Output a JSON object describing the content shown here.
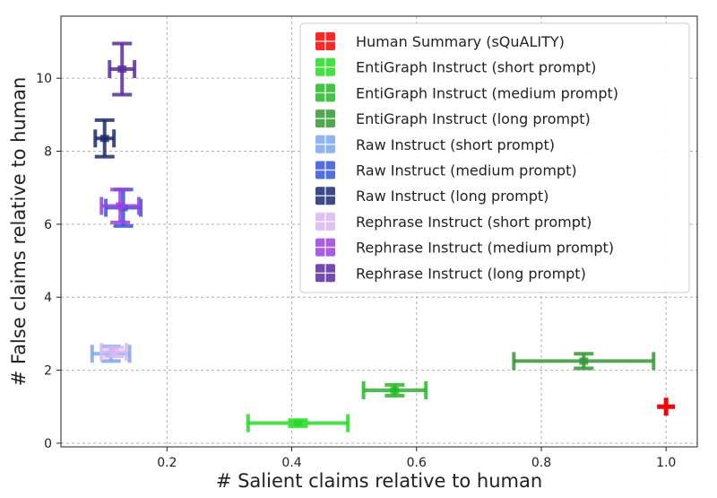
{
  "chart_data": {
    "type": "scatter",
    "title": "",
    "xlabel": "# Salient claims relative to human",
    "ylabel": "# False claims relative to human",
    "xlim": [
      0.03,
      1.05
    ],
    "ylim": [
      -0.1,
      11.7
    ],
    "xticks": [
      0.2,
      0.4,
      0.6,
      0.8,
      1.0
    ],
    "xtick_labels": [
      "0.2",
      "0.4",
      "0.6",
      "0.8",
      "1.0"
    ],
    "yticks": [
      0,
      2,
      4,
      6,
      8,
      10
    ],
    "ytick_labels": [
      "0",
      "2",
      "4",
      "6",
      "8",
      "10"
    ],
    "grid": true,
    "legend_position": "upper-right",
    "series": [
      {
        "name": "Human Summary (sQuALITY)",
        "color": "#ff0000",
        "x": 1.0,
        "y": 1.0,
        "xerr": 0.0,
        "yerr": 0.0
      },
      {
        "name": "EntiGraph Instruct (short prompt)",
        "color": "#22dd22",
        "x": 0.41,
        "y": 0.55,
        "xerr": 0.08,
        "yerr": 0.08
      },
      {
        "name": "EntiGraph Instruct (medium prompt)",
        "color": "#22bb22",
        "x": 0.565,
        "y": 1.45,
        "xerr": 0.05,
        "yerr": 0.15
      },
      {
        "name": "EntiGraph Instruct (long prompt)",
        "color": "#339933",
        "x": 0.868,
        "y": 2.25,
        "xerr": 0.112,
        "yerr": 0.2
      },
      {
        "name": "Raw Instruct (short prompt)",
        "color": "#7aa8f0",
        "x": 0.11,
        "y": 2.45,
        "xerr": 0.03,
        "yerr": 0.2
      },
      {
        "name": "Raw Instruct (medium prompt)",
        "color": "#3355dd",
        "x": 0.13,
        "y": 6.45,
        "xerr": 0.028,
        "yerr": 0.5
      },
      {
        "name": "Raw Instruct (long prompt)",
        "color": "#1c2a6e",
        "x": 0.1,
        "y": 8.35,
        "xerr": 0.015,
        "yerr": 0.5
      },
      {
        "name": "Rephrase Instruct (short prompt)",
        "color": "#d8b8f0",
        "x": 0.115,
        "y": 2.5,
        "xerr": 0.02,
        "yerr": 0.12
      },
      {
        "name": "Rephrase Instruct (medium prompt)",
        "color": "#9b40e0",
        "x": 0.125,
        "y": 6.5,
        "xerr": 0.03,
        "yerr": 0.45
      },
      {
        "name": "Rephrase Instruct (long prompt)",
        "color": "#5a2aa0",
        "x": 0.128,
        "y": 10.25,
        "xerr": 0.02,
        "yerr": 0.7
      }
    ]
  }
}
